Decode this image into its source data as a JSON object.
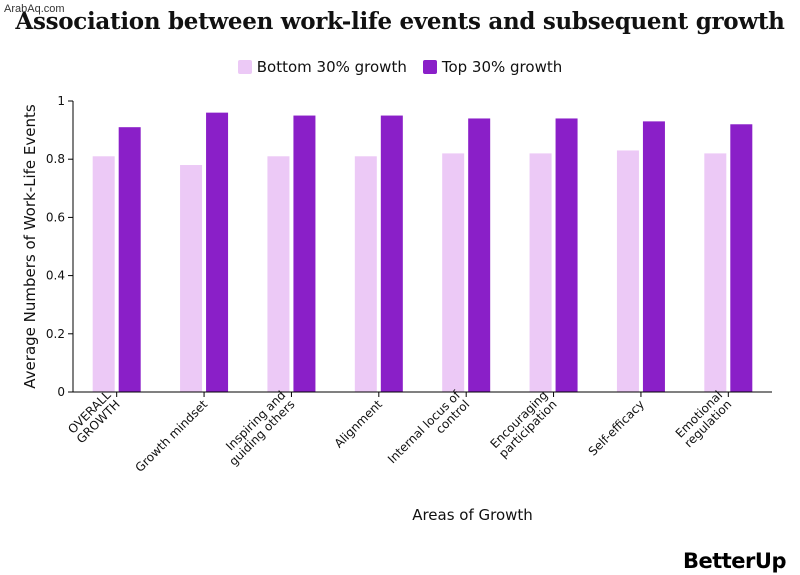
{
  "watermark": "ArabAq.com",
  "brand": "BetterUp",
  "colors": {
    "bottom": "#ecc9f6",
    "top": "#8a1fc8",
    "axis": "#000000"
  },
  "chart_data": {
    "type": "bar",
    "title": "Association between work-life events and subsequent growth",
    "xlabel": "Areas of Growth",
    "ylabel": "Average Numbers of Work-Life Events",
    "ylim": [
      0,
      1
    ],
    "yticks": [
      "0",
      "0.2",
      "0.4",
      "0.6",
      "0.8",
      "1"
    ],
    "grid": false,
    "legend_position": "top-center",
    "categories": [
      [
        "OVERALL",
        "GROWTH"
      ],
      [
        "Growth mindset"
      ],
      [
        "Inspiring and",
        "guiding others"
      ],
      [
        "Alignment"
      ],
      [
        "Internal locus of",
        "control"
      ],
      [
        "Encouraging",
        "participation"
      ],
      [
        "Self-efficacy"
      ],
      [
        "Emotional",
        "regulation"
      ]
    ],
    "series": [
      {
        "name": "Bottom 30% growth",
        "values": [
          0.81,
          0.78,
          0.81,
          0.81,
          0.82,
          0.82,
          0.83,
          0.82
        ]
      },
      {
        "name": "Top 30% growth",
        "values": [
          0.91,
          0.96,
          0.95,
          0.95,
          0.94,
          0.94,
          0.93,
          0.92
        ]
      }
    ]
  }
}
